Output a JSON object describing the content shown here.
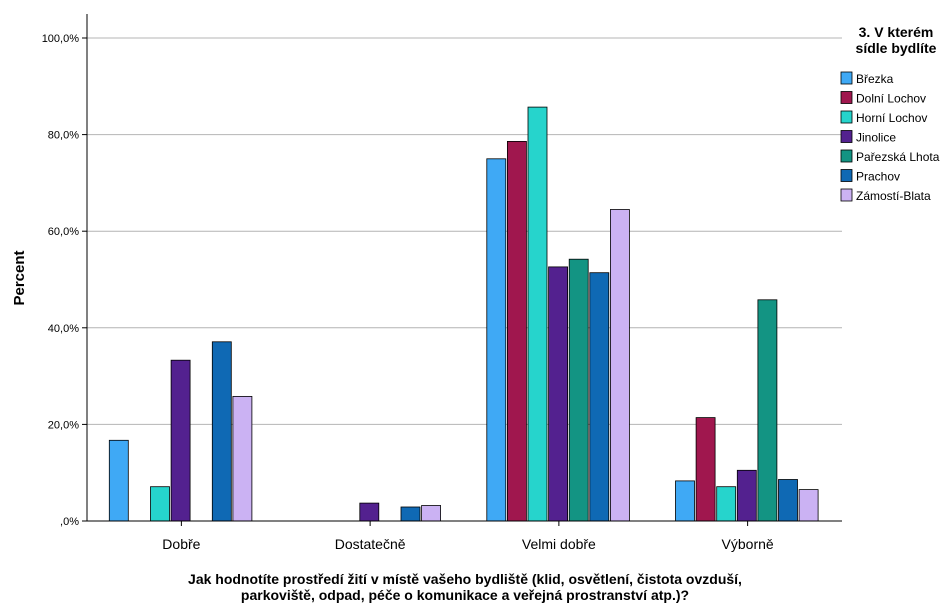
{
  "chart_data": {
    "type": "bar",
    "title": "",
    "xlabel": "Jak hodnotíte prostředí žití v místě vašeho bydliště (klid, osvětlení, čistota ovzduší,\nparkoviště, odpad, péče o komunikace a veřejná prostranství atp.)?",
    "ylabel": "Percent",
    "ylim": [
      0,
      100
    ],
    "yticks": [
      0,
      20,
      40,
      60,
      80,
      100
    ],
    "ytick_labels": [
      ",0%",
      "20,0%",
      "40,0%",
      "60,0%",
      "80,0%",
      "100,0%"
    ],
    "grid": true,
    "legend_position": "right",
    "legend_title": "3. V kterém sídle bydlíte",
    "categories": [
      "Dobře",
      "Dostatečně",
      "Velmi dobře",
      "Výborně"
    ],
    "series": [
      {
        "name": "Březka",
        "color": "#3fa9f5",
        "values": [
          16.7,
          0,
          75.0,
          8.3
        ]
      },
      {
        "name": "Dolní Lochov",
        "color": "#a0174e",
        "values": [
          0,
          0,
          78.6,
          21.4
        ]
      },
      {
        "name": "Horní Lochov",
        "color": "#26d4cc",
        "values": [
          7.1,
          0,
          85.7,
          7.1
        ]
      },
      {
        "name": "Jinolice",
        "color": "#53218f",
        "values": [
          33.3,
          3.7,
          52.6,
          10.5
        ]
      },
      {
        "name": "Pařezská Lhota",
        "color": "#139483",
        "values": [
          0,
          0,
          54.2,
          45.8
        ]
      },
      {
        "name": "Prachov",
        "color": "#0f69b4",
        "values": [
          37.1,
          2.9,
          51.4,
          8.6
        ]
      },
      {
        "name": "Zámostí-Blata",
        "color": "#cbb2f3",
        "values": [
          25.8,
          3.2,
          64.5,
          6.5
        ]
      }
    ]
  }
}
